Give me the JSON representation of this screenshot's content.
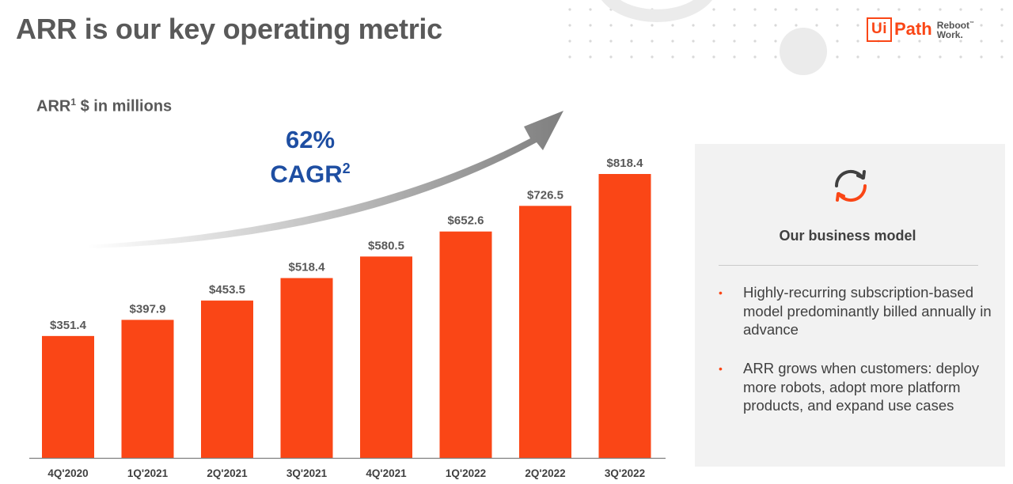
{
  "slide": {
    "title": "ARR is our key operating metric",
    "subtitle": "ARR",
    "subtitle_sup": "1",
    "subtitle_rest": " $ in millions",
    "cagr_value": "62%",
    "cagr_label": "CAGR",
    "cagr_sup": "2"
  },
  "logo": {
    "box": "Ui",
    "name": "Path",
    "tag_line1": "Reboot",
    "tag_mark": "™",
    "tag_line2": "Work."
  },
  "panel": {
    "icon": "refresh-cycle-icon",
    "heading": "Our business model",
    "bullets": [
      "Highly-recurring subscription-based model predominantly billed annually in advance",
      "ARR grows when customers: deploy more robots, adopt more platform products, and expand use cases"
    ],
    "bullet_symbol": "•"
  },
  "colors": {
    "bar": "#fa4616",
    "title": "#595959",
    "cagr": "#1e4ea2",
    "panel_bg": "#f2f2f2",
    "arrow": "#8c8c8c"
  },
  "chart_data": {
    "type": "bar",
    "title": "",
    "ylabel": "ARR $ in millions",
    "categories": [
      "4Q'2020",
      "1Q'2021",
      "2Q'2021",
      "3Q'2021",
      "4Q'2021",
      "1Q'2022",
      "2Q'2022",
      "3Q'2022"
    ],
    "values": [
      351.4,
      397.9,
      453.5,
      518.4,
      580.5,
      652.6,
      726.5,
      818.4
    ],
    "labels": [
      "$351.4",
      "$397.9",
      "$453.5",
      "$518.4",
      "$580.5",
      "$652.6",
      "$726.5",
      "$818.4"
    ],
    "ylim": [
      0,
      818.4
    ],
    "grid": false,
    "legend": "none",
    "annotation": "62% CAGR"
  }
}
